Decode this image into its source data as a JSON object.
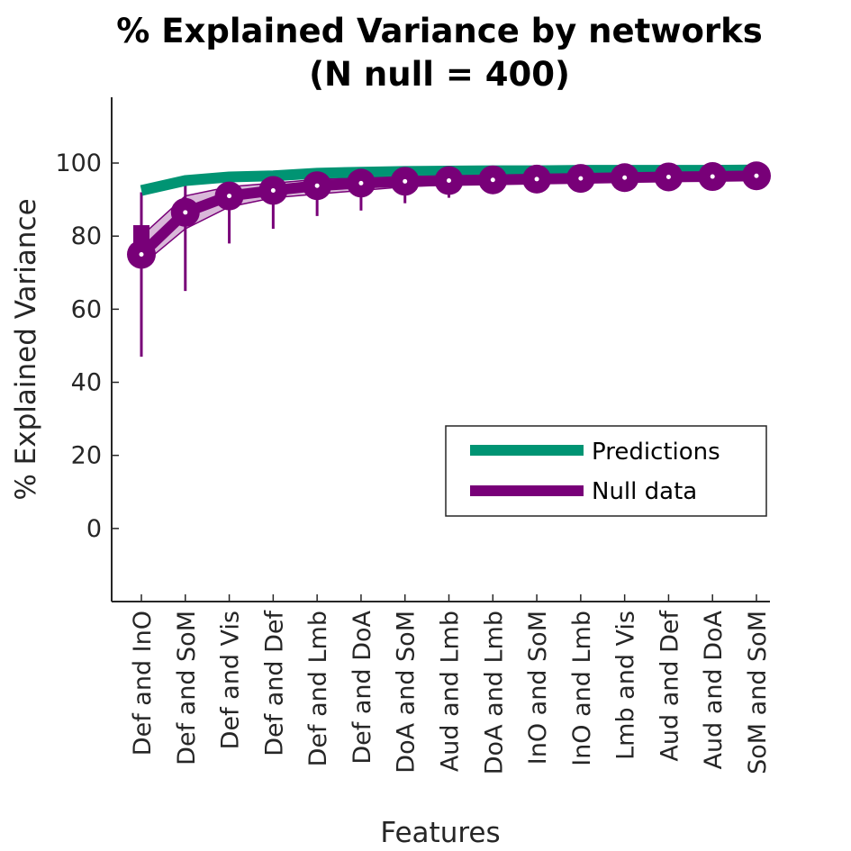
{
  "chart_data": {
    "type": "line",
    "title_line1": "% Explained Variance by networks",
    "title_line2": "(N null = 400)",
    "xlabel": "Features",
    "ylabel": "% Explained Variance",
    "ylim": [
      -20,
      118
    ],
    "yticks": [
      0,
      20,
      40,
      60,
      80,
      100
    ],
    "categories": [
      "Def and InO",
      "Def and SoM",
      "Def and Vis",
      "Def and Def",
      "Def and Lmb",
      "Def and DoA",
      "DoA and SoM",
      "Aud and Lmb",
      "DoA and Lmb",
      "InO and SoM",
      "InO and Lmb",
      "Lmb and Vis",
      "Aud and Def",
      "Aud and DoA",
      "SoM and SoM"
    ],
    "grid": false,
    "legend_position": "lower-right",
    "colors": {
      "predictions": "#009473",
      "null": "#780078",
      "axis": "#262626"
    },
    "series": [
      {
        "name": "Predictions",
        "values": [
          92.5,
          95.2,
          96.2,
          96.5,
          97.2,
          97.5,
          97.7,
          97.8,
          97.9,
          97.9,
          98.0,
          98.0,
          98.0,
          98.0,
          98.1
        ]
      },
      {
        "name": "Null data",
        "mean": [
          75.0,
          86.5,
          91.0,
          92.5,
          93.8,
          94.5,
          95.0,
          95.2,
          95.4,
          95.6,
          95.8,
          96.0,
          96.2,
          96.3,
          96.5
        ],
        "band_low": [
          72.0,
          82.0,
          88.0,
          90.5,
          91.5,
          92.5,
          93.5,
          94.0,
          94.3,
          94.7,
          95.0,
          95.3,
          95.5,
          95.6,
          95.8
        ],
        "band_high": [
          80.0,
          91.0,
          93.5,
          94.5,
          95.5,
          96.0,
          96.2,
          96.4,
          96.5,
          96.6,
          96.8,
          96.9,
          97.0,
          97.1,
          97.2
        ],
        "whisker_low": [
          47.0,
          65.0,
          78.0,
          82.0,
          85.5,
          87.0,
          89.0,
          90.5,
          91.5,
          92.5,
          93.0,
          93.5,
          94.0,
          94.0,
          94.5
        ],
        "whisker_high": [
          92.0,
          94.0,
          95.5,
          96.0,
          96.5,
          97.0,
          97.0,
          97.2,
          97.3,
          97.4,
          97.5,
          97.5,
          97.6,
          97.6,
          97.7
        ],
        "box_q1": [
          77.0,
          83.0,
          89.0,
          91.5,
          92.5,
          93.5,
          94.2,
          94.5,
          94.8,
          95.0,
          95.3,
          95.5,
          95.8,
          95.9,
          96.0
        ],
        "box_q3": [
          83.0,
          89.0,
          92.5,
          93.5,
          94.8,
          95.3,
          95.7,
          95.9,
          96.0,
          96.1,
          96.3,
          96.4,
          96.6,
          96.7,
          96.9
        ]
      }
    ]
  }
}
